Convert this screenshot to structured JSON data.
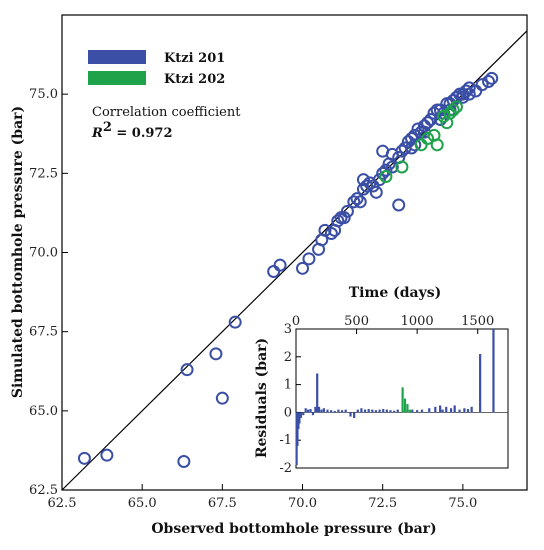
{
  "chart_data": [
    {
      "type": "scatter",
      "xlabel": "Observed bottomhole pressure (bar)",
      "ylabel": "Simulated bottomhole pressure (bar)",
      "xlim": [
        62.5,
        77.0
      ],
      "ylim": [
        62.5,
        77.5
      ],
      "xticks": [
        "62.5",
        "65.0",
        "67.5",
        "70.0",
        "72.5",
        "75.0"
      ],
      "yticks": [
        "62.5",
        "65.0",
        "67.5",
        "70.0",
        "72.5",
        "75.0"
      ],
      "reference_line": "y = x",
      "legend": {
        "placement": "top-left"
      },
      "annotation": {
        "line1": "Correlation coefficient",
        "r2_label": "R",
        "r2_exp": "2",
        "r2_value": " = 0.972"
      },
      "series": [
        {
          "name": "Ktzi 201",
          "color": "#3a4fa5",
          "points": [
            [
              63.2,
              63.5
            ],
            [
              63.9,
              63.6
            ],
            [
              66.3,
              63.4
            ],
            [
              66.4,
              66.3
            ],
            [
              67.3,
              66.8
            ],
            [
              67.5,
              65.4
            ],
            [
              67.9,
              67.8
            ],
            [
              69.1,
              69.4
            ],
            [
              69.3,
              69.6
            ],
            [
              70.0,
              69.5
            ],
            [
              70.2,
              69.8
            ],
            [
              70.5,
              70.1
            ],
            [
              70.6,
              70.4
            ],
            [
              70.7,
              70.7
            ],
            [
              70.9,
              70.6
            ],
            [
              71.0,
              70.7
            ],
            [
              71.1,
              71.0
            ],
            [
              71.2,
              71.1
            ],
            [
              71.3,
              71.1
            ],
            [
              71.4,
              71.3
            ],
            [
              71.6,
              71.6
            ],
            [
              71.7,
              71.7
            ],
            [
              71.8,
              71.6
            ],
            [
              71.9,
              72.0
            ],
            [
              71.9,
              72.3
            ],
            [
              72.0,
              72.1
            ],
            [
              72.1,
              72.2
            ],
            [
              72.2,
              72.1
            ],
            [
              72.3,
              71.9
            ],
            [
              72.4,
              72.3
            ],
            [
              72.5,
              72.5
            ],
            [
              72.6,
              72.6
            ],
            [
              72.7,
              72.8
            ],
            [
              72.8,
              73.1
            ],
            [
              72.8,
              72.7
            ],
            [
              73.0,
              73.0
            ],
            [
              73.1,
              73.2
            ],
            [
              73.2,
              73.3
            ],
            [
              73.3,
              73.5
            ],
            [
              73.4,
              73.6
            ],
            [
              73.5,
              73.7
            ],
            [
              73.6,
              73.9
            ],
            [
              73.7,
              73.8
            ],
            [
              73.8,
              74.0
            ],
            [
              73.9,
              74.1
            ],
            [
              74.0,
              74.2
            ],
            [
              74.1,
              74.4
            ],
            [
              74.2,
              74.5
            ],
            [
              74.3,
              74.5
            ],
            [
              74.4,
              74.4
            ],
            [
              74.5,
              74.7
            ],
            [
              74.6,
              74.7
            ],
            [
              74.7,
              74.8
            ],
            [
              74.8,
              74.9
            ],
            [
              74.9,
              75.0
            ],
            [
              75.0,
              75.0
            ],
            [
              75.1,
              75.1
            ],
            [
              75.2,
              75.2
            ],
            [
              75.4,
              75.1
            ],
            [
              75.6,
              75.3
            ],
            [
              75.8,
              75.4
            ],
            [
              75.9,
              75.5
            ],
            [
              73.0,
              71.5
            ],
            [
              73.4,
              73.3
            ],
            [
              73.5,
              73.4
            ],
            [
              73.8,
              73.8
            ],
            [
              74.3,
              74.2
            ],
            [
              74.6,
              74.5
            ],
            [
              75.0,
              74.9
            ],
            [
              75.2,
              75.0
            ],
            [
              72.5,
              73.2
            ]
          ]
        },
        {
          "name": "Ktzi 202",
          "color": "#1fa34a",
          "points": [
            [
              72.6,
              72.4
            ],
            [
              73.1,
              72.7
            ],
            [
              73.7,
              73.4
            ],
            [
              74.2,
              73.4
            ],
            [
              73.9,
              73.6
            ],
            [
              74.1,
              73.7
            ],
            [
              74.5,
              74.1
            ],
            [
              74.4,
              74.3
            ],
            [
              74.6,
              74.4
            ],
            [
              74.7,
              74.5
            ],
            [
              74.8,
              74.6
            ]
          ]
        }
      ]
    },
    {
      "type": "bar",
      "inset": true,
      "xlabel": "Time (days)",
      "ylabel": "Residuals (bar)",
      "xlim": [
        0,
        1750
      ],
      "ylim": [
        -2,
        3
      ],
      "xticks": [
        "0",
        "500",
        "1000",
        "1500"
      ],
      "yticks": [
        "-2",
        "-1",
        "0",
        "1",
        "2",
        "3"
      ],
      "series": [
        {
          "name": "Ktzi 201",
          "color": "#3a4fa5",
          "points": [
            [
              5,
              -1.9
            ],
            [
              12,
              -1.2
            ],
            [
              20,
              -0.6
            ],
            [
              28,
              -0.4
            ],
            [
              40,
              -0.2
            ],
            [
              60,
              -0.1
            ],
            [
              80,
              0.15
            ],
            [
              100,
              0.1
            ],
            [
              120,
              0.12
            ],
            [
              140,
              -0.1
            ],
            [
              160,
              0.2
            ],
            [
              175,
              1.4
            ],
            [
              190,
              0.2
            ],
            [
              210,
              0.1
            ],
            [
              230,
              0.15
            ],
            [
              260,
              0.1
            ],
            [
              290,
              0.08
            ],
            [
              320,
              0.05
            ],
            [
              350,
              0.1
            ],
            [
              380,
              0.08
            ],
            [
              410,
              0.1
            ],
            [
              450,
              -0.15
            ],
            [
              480,
              -0.2
            ],
            [
              510,
              0.1
            ],
            [
              540,
              0.15
            ],
            [
              570,
              0.1
            ],
            [
              600,
              0.12
            ],
            [
              630,
              0.1
            ],
            [
              660,
              0.08
            ],
            [
              690,
              0.1
            ],
            [
              720,
              0.12
            ],
            [
              750,
              0.1
            ],
            [
              780,
              0.08
            ],
            [
              810,
              0.06
            ],
            [
              840,
              0.1
            ],
            [
              880,
              0.08
            ],
            [
              920,
              0.12
            ],
            [
              960,
              0.1
            ],
            [
              1000,
              0.08
            ],
            [
              1040,
              0.1
            ],
            [
              1100,
              0.15
            ],
            [
              1150,
              0.2
            ],
            [
              1190,
              0.25
            ],
            [
              1210,
              0.1
            ],
            [
              1240,
              0.2
            ],
            [
              1280,
              0.15
            ],
            [
              1310,
              0.25
            ],
            [
              1350,
              0.1
            ],
            [
              1390,
              0.15
            ],
            [
              1420,
              0.12
            ],
            [
              1450,
              0.2
            ],
            [
              1520,
              2.1
            ],
            [
              1630,
              3.0
            ]
          ]
        },
        {
          "name": "Ktzi 202",
          "color": "#1fa34a",
          "points": [
            [
              880,
              0.9
            ],
            [
              900,
              0.5
            ],
            [
              920,
              0.3
            ],
            [
              940,
              0.1
            ]
          ]
        }
      ]
    }
  ]
}
